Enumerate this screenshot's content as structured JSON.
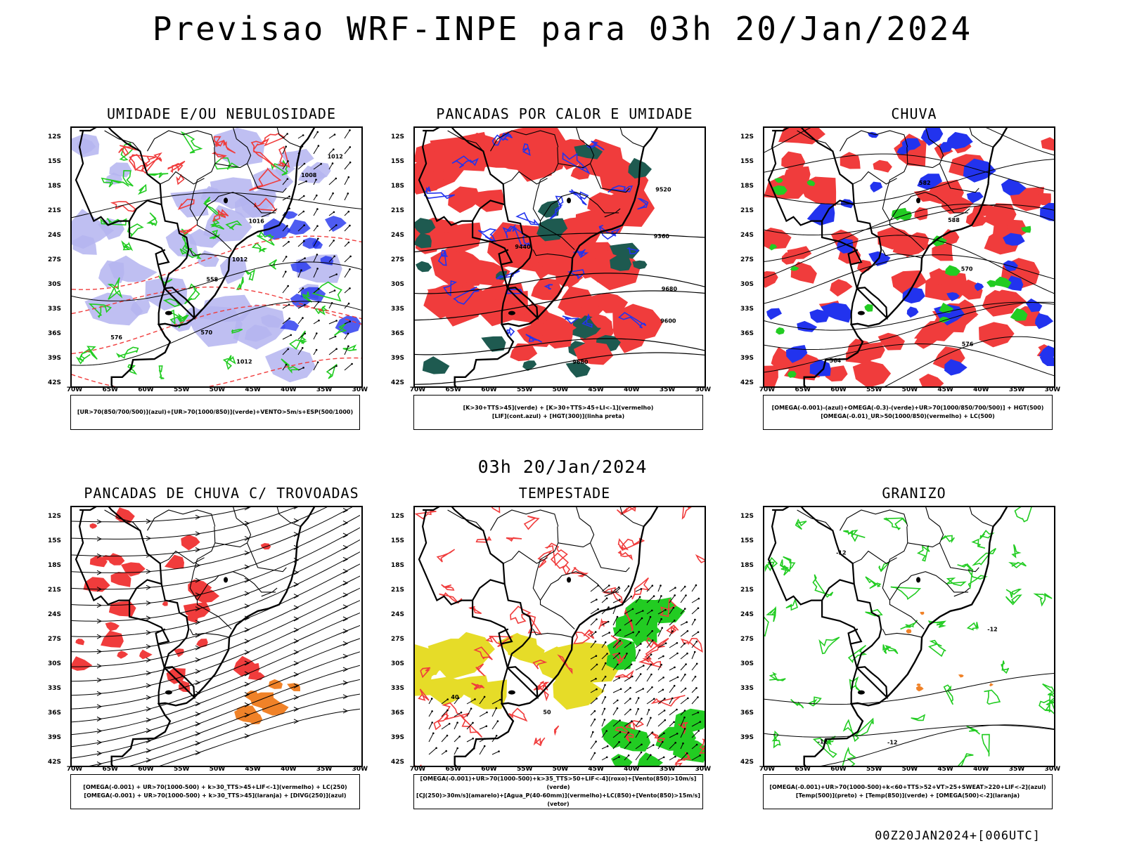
{
  "title": "Previsao WRF-INPE  para 03h 20/Jan/2024",
  "mid_title": "03h 20/Jan/2024",
  "footer_stamp": "00Z20JAN2024+[006UTC]",
  "lat_labels": [
    "12S",
    "15S",
    "18S",
    "21S",
    "24S",
    "27S",
    "30S",
    "33S",
    "36S",
    "39S",
    "42S"
  ],
  "lon_labels": [
    "70W",
    "65W",
    "60W",
    "55W",
    "50W",
    "45W",
    "40W",
    "35W",
    "30W"
  ],
  "colors": {
    "red": "#f03c3c",
    "green": "#22cc22",
    "blue": "#2233ee",
    "lavender": "#b4b4f0",
    "darkgreen": "#1e5a50",
    "yellow": "#e6dc28",
    "orange": "#f08228"
  },
  "panels": [
    {
      "title": "UMIDADE E/OU NEBULOSIDADE",
      "legend": [
        "[UR>70(850/700/500)](azul)+[UR>70(1000/850)](verde)+VENTO>5m/s+ESP(500/1000)"
      ],
      "contour_labels": [
        "1012",
        "1012",
        "1012",
        "1016",
        "1008",
        "576",
        "570",
        "558"
      ]
    },
    {
      "title": "PANCADAS POR CALOR E UMIDADE",
      "legend": [
        "[K>30+TTS>45](verde) + [K>30+TTS>45+LI<-1](vermelho)",
        "[LIF](cont.azul) + [HGT(300)](linha preta)"
      ],
      "contour_labels": [
        "9680",
        "9680",
        "9600",
        "9520",
        "9440",
        "9360"
      ]
    },
    {
      "title": "CHUVA",
      "legend": [
        "[OMEGA(-0.001)-(azul)+OMEGA(-0.3)-(verde)+UR>70(1000/850/700/500)] + HGT(500)",
        "[OMEGA(-0.01)_UR>50(1000/850)(vermelho) + LC(500)"
      ],
      "contour_labels": [
        "588",
        "582",
        "576",
        "570",
        "564"
      ]
    },
    {
      "title": "PANCADAS DE CHUVA C/ TROVOADAS",
      "legend": [
        "[OMEGA(-0.001) + UR>70(1000-500) + k>30_TTS>45+LIF<-1](vermelho) + LC(250)",
        "[OMEGA(-0.001) + UR>70(1000-500) + k>30_TTS>45](laranja) + [DIVG(250)](azul)"
      ],
      "contour_labels": []
    },
    {
      "title": "TEMPESTADE",
      "legend": [
        "[OMEGA(-0.001)+UR>70(1000-500)+k>35_TTS>50+LIF<-4](roxo)+[Vento(850)>10m/s](verde)",
        "[CJ(250)>30m/s](amarelo)+[Agua_P(40-60mm)](vermelho)+LC(850)+[Vento(850)>15m/s](vetor)"
      ],
      "contour_labels": [
        "40",
        "50"
      ]
    },
    {
      "title": "GRANIZO",
      "legend": [
        "[OMEGA(-0.001)+UR>70(1000-500)+k<60+TTS>52+VT>25+SWEAT>220+LIF<-2](azul)",
        "[Temp(500)](preto) + [Temp(850)](verde) + [OMEGA(500)<-2](laranja)"
      ],
      "contour_labels": [
        "-12",
        "-12",
        "-12",
        "-12"
      ]
    }
  ]
}
